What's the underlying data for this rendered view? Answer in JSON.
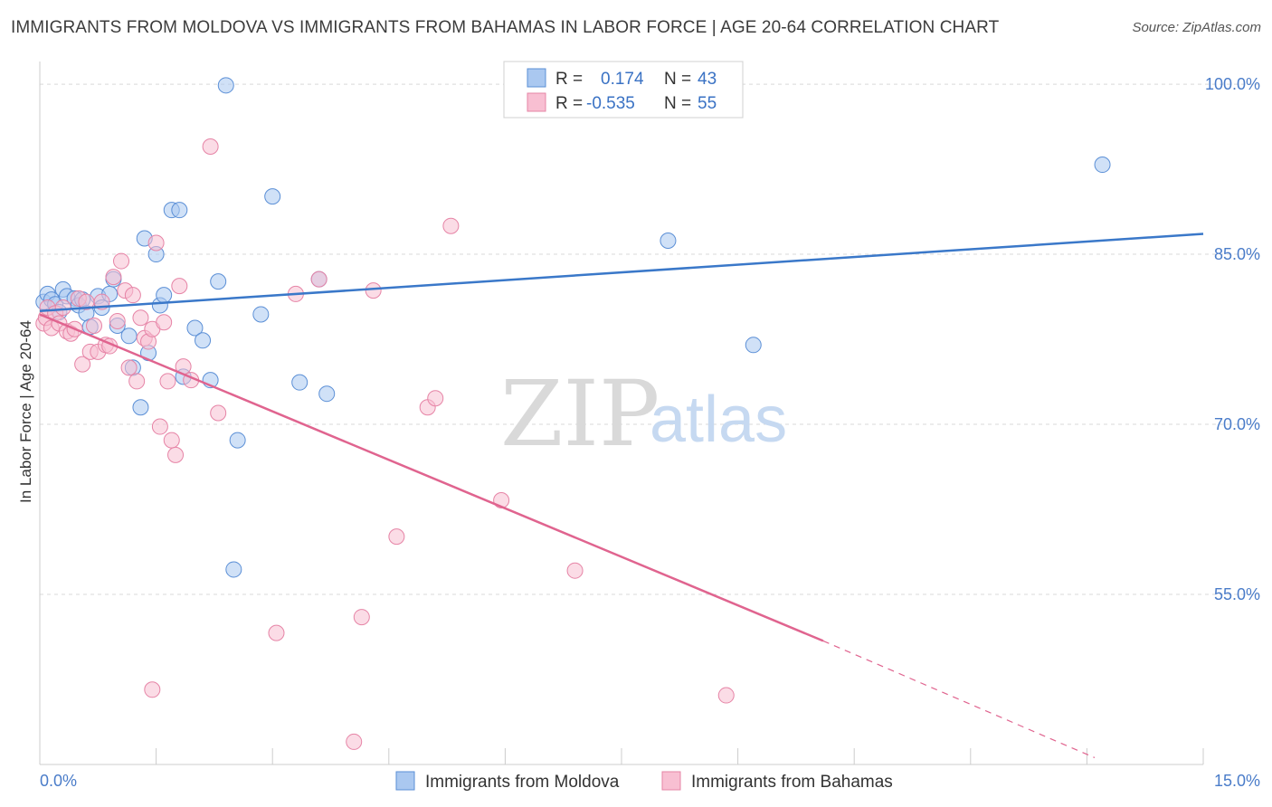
{
  "header": {
    "title": "IMMIGRANTS FROM MOLDOVA VS IMMIGRANTS FROM BAHAMAS IN LABOR FORCE | AGE 20-64 CORRELATION CHART",
    "source": "Source: ZipAtlas.com"
  },
  "watermark": {
    "zip": "ZIP",
    "atlas": "atlas"
  },
  "legend": {
    "rows": [
      {
        "r_label": "R =",
        "r_value": "0.174",
        "n_label": "N =",
        "n_value": "43"
      },
      {
        "r_label": "R =",
        "r_value": "-0.535",
        "n_label": "N =",
        "n_value": "55"
      }
    ]
  },
  "bottom_legend": {
    "items": [
      "Immigrants from Moldova",
      "Immigrants from Bahamas"
    ]
  },
  "colors": {
    "moldova_fill": "#aac8f0",
    "moldova_stroke": "#5b8fd6",
    "moldova_line": "#3a78c9",
    "bahamas_fill": "#f8bfd2",
    "bahamas_stroke": "#e684a6",
    "bahamas_line": "#e0648f",
    "grid": "#d9d9d9",
    "tick_text": "#4a7cc9"
  },
  "chart_data": {
    "type": "scatter",
    "title": "IMMIGRANTS FROM MOLDOVA VS IMMIGRANTS FROM BAHAMAS IN LABOR FORCE | AGE 20-64 CORRELATION CHART",
    "xlabel": "",
    "ylabel": "In Labor Force | Age 20-64",
    "xlim": [
      0,
      15
    ],
    "ylim": [
      40,
      102
    ],
    "x_tick_labels": [
      "0.0%",
      "15.0%"
    ],
    "y_ticks": [
      55,
      70,
      85,
      100
    ],
    "y_tick_labels": [
      "55.0%",
      "70.0%",
      "85.0%",
      "100.0%"
    ],
    "series": [
      {
        "name": "Immigrants from Moldova",
        "r": 0.174,
        "n": 43,
        "trend": {
          "x": [
            0,
            15
          ],
          "y": [
            80.0,
            86.8
          ]
        },
        "points": [
          [
            0.05,
            80.8
          ],
          [
            0.1,
            81.5
          ],
          [
            0.15,
            81.0
          ],
          [
            0.2,
            80.6
          ],
          [
            0.25,
            79.9
          ],
          [
            0.3,
            81.9
          ],
          [
            0.35,
            81.3
          ],
          [
            0.45,
            81.1
          ],
          [
            0.5,
            80.5
          ],
          [
            0.55,
            81.0
          ],
          [
            0.6,
            79.8
          ],
          [
            0.65,
            78.6
          ],
          [
            0.75,
            81.3
          ],
          [
            0.8,
            80.3
          ],
          [
            0.9,
            81.5
          ],
          [
            0.95,
            82.8
          ],
          [
            1.0,
            78.7
          ],
          [
            1.15,
            77.8
          ],
          [
            1.2,
            75.0
          ],
          [
            1.3,
            71.5
          ],
          [
            1.35,
            86.4
          ],
          [
            1.5,
            85.0
          ],
          [
            1.55,
            80.5
          ],
          [
            1.6,
            81.4
          ],
          [
            1.7,
            88.9
          ],
          [
            1.8,
            88.9
          ],
          [
            1.85,
            74.2
          ],
          [
            2.0,
            78.5
          ],
          [
            2.1,
            77.4
          ],
          [
            2.2,
            73.9
          ],
          [
            2.3,
            82.6
          ],
          [
            2.4,
            99.9
          ],
          [
            2.55,
            68.6
          ],
          [
            2.5,
            57.2
          ],
          [
            2.85,
            79.7
          ],
          [
            3.0,
            90.1
          ],
          [
            3.35,
            73.7
          ],
          [
            3.6,
            82.8
          ],
          [
            3.7,
            72.7
          ],
          [
            1.4,
            76.3
          ],
          [
            8.1,
            86.2
          ],
          [
            9.2,
            77.0
          ],
          [
            13.7,
            92.9
          ]
        ]
      },
      {
        "name": "Immigrants from Bahamas",
        "r": -0.535,
        "n": 55,
        "trend": {
          "x": [
            0,
            10.1
          ],
          "y": [
            79.7,
            50.9
          ]
        },
        "trend_dashed": {
          "x": [
            10.1,
            13.6
          ],
          "y": [
            50.9,
            40.6
          ]
        },
        "points": [
          [
            0.05,
            78.9
          ],
          [
            0.08,
            79.4
          ],
          [
            0.1,
            80.3
          ],
          [
            0.15,
            78.5
          ],
          [
            0.2,
            79.8
          ],
          [
            0.25,
            78.9
          ],
          [
            0.3,
            80.3
          ],
          [
            0.35,
            78.2
          ],
          [
            0.4,
            78.0
          ],
          [
            0.45,
            78.4
          ],
          [
            0.5,
            81.1
          ],
          [
            0.55,
            75.3
          ],
          [
            0.6,
            80.8
          ],
          [
            0.65,
            76.4
          ],
          [
            0.7,
            78.7
          ],
          [
            0.75,
            76.4
          ],
          [
            0.8,
            80.8
          ],
          [
            0.85,
            77.0
          ],
          [
            0.9,
            76.9
          ],
          [
            0.95,
            83.0
          ],
          [
            1.0,
            79.1
          ],
          [
            1.05,
            84.4
          ],
          [
            1.1,
            81.8
          ],
          [
            1.15,
            75.0
          ],
          [
            1.2,
            81.4
          ],
          [
            1.25,
            73.8
          ],
          [
            1.3,
            79.4
          ],
          [
            1.35,
            77.6
          ],
          [
            1.4,
            77.3
          ],
          [
            1.45,
            78.4
          ],
          [
            1.5,
            86.0
          ],
          [
            1.55,
            69.8
          ],
          [
            1.6,
            79.0
          ],
          [
            1.65,
            73.8
          ],
          [
            1.7,
            68.6
          ],
          [
            1.75,
            67.3
          ],
          [
            1.8,
            82.2
          ],
          [
            1.85,
            75.1
          ],
          [
            1.95,
            73.9
          ],
          [
            1.45,
            46.6
          ],
          [
            2.2,
            94.5
          ],
          [
            2.3,
            71.0
          ],
          [
            3.05,
            51.6
          ],
          [
            3.3,
            81.5
          ],
          [
            3.6,
            82.8
          ],
          [
            4.05,
            42.0
          ],
          [
            4.15,
            53.0
          ],
          [
            4.3,
            81.8
          ],
          [
            4.6,
            60.1
          ],
          [
            5.0,
            71.5
          ],
          [
            5.1,
            72.3
          ],
          [
            5.3,
            87.5
          ],
          [
            5.95,
            63.3
          ],
          [
            6.9,
            57.1
          ],
          [
            8.85,
            46.1
          ]
        ]
      }
    ]
  }
}
